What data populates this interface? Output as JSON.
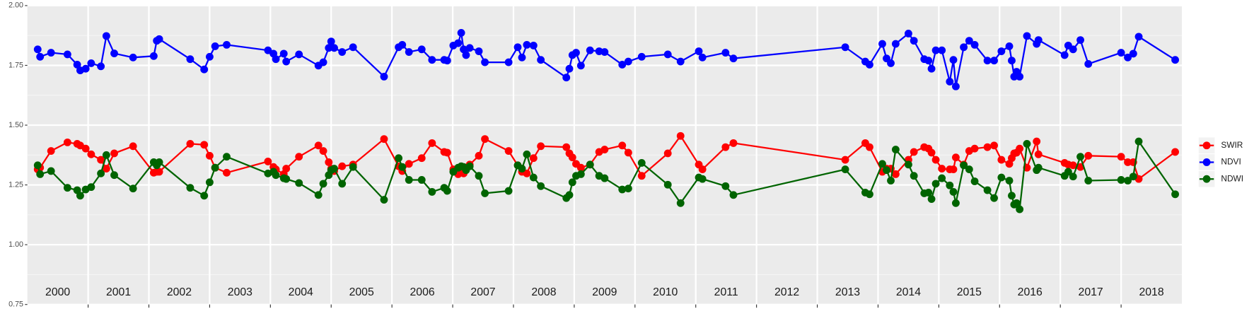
{
  "chart_data": {
    "type": "line",
    "x": [
      2000.17,
      2000.21,
      2000.39,
      2000.66,
      2000.82,
      2000.87,
      2000.96,
      2001.05,
      2001.21,
      2001.3,
      2001.43,
      2001.74,
      2002.08,
      2002.13,
      2002.17,
      2002.68,
      2002.91,
      2003.0,
      2003.09,
      2003.28,
      2003.96,
      2004.05,
      2004.09,
      2004.22,
      2004.26,
      2004.47,
      2004.79,
      2004.87,
      2004.96,
      2005.0,
      2005.05,
      2005.18,
      2005.36,
      2005.87,
      2006.11,
      2006.17,
      2006.28,
      2006.49,
      2006.66,
      2006.86,
      2006.91,
      2007.01,
      2007.09,
      2007.14,
      2007.18,
      2007.22,
      2007.28,
      2007.43,
      2007.53,
      2007.92,
      2008.07,
      2008.14,
      2008.22,
      2008.33,
      2008.45,
      2008.87,
      2008.92,
      2008.97,
      2009.03,
      2009.11,
      2009.26,
      2009.41,
      2009.5,
      2009.79,
      2009.89,
      2010.11,
      2010.54,
      2010.75,
      2011.05,
      2011.11,
      2011.49,
      2011.62,
      2013.46,
      2013.79,
      2013.86,
      2014.07,
      2014.14,
      2014.21,
      2014.29,
      2014.5,
      2014.59,
      2014.76,
      2014.83,
      2014.88,
      2014.95,
      2015.05,
      2015.18,
      2015.24,
      2015.28,
      2015.41,
      2015.5,
      2015.59,
      2015.8,
      2015.91,
      2016.03,
      2016.16,
      2016.2,
      2016.24,
      2016.28,
      2016.33,
      2016.45,
      2016.61,
      2016.64,
      2017.07,
      2017.13,
      2017.21,
      2017.33,
      2017.46,
      2018.0,
      2018.11,
      2018.2,
      2018.29,
      2018.89
    ],
    "series": [
      {
        "name": "SWIR",
        "color": "#ff0000",
        "values": [
          1.315,
          1.322,
          1.392,
          1.428,
          1.422,
          1.415,
          1.402,
          1.378,
          1.355,
          1.318,
          1.382,
          1.412,
          1.301,
          1.305,
          1.305,
          1.422,
          1.418,
          1.372,
          1.322,
          1.301,
          1.348,
          1.325,
          1.315,
          1.295,
          1.318,
          1.368,
          1.415,
          1.392,
          1.345,
          1.318,
          1.308,
          1.328,
          1.335,
          1.442,
          1.328,
          1.308,
          1.338,
          1.362,
          1.425,
          1.388,
          1.385,
          1.315,
          1.295,
          1.305,
          1.298,
          1.322,
          1.335,
          1.372,
          1.442,
          1.392,
          1.332,
          1.305,
          1.298,
          1.362,
          1.412,
          1.408,
          1.382,
          1.365,
          1.338,
          1.322,
          1.335,
          1.388,
          1.398,
          1.415,
          1.385,
          1.288,
          1.382,
          1.455,
          1.335,
          1.315,
          1.408,
          1.425,
          1.355,
          1.425,
          1.408,
          1.305,
          1.318,
          1.318,
          1.295,
          1.355,
          1.388,
          1.408,
          1.402,
          1.385,
          1.355,
          1.318,
          1.315,
          1.315,
          1.365,
          1.335,
          1.392,
          1.402,
          1.408,
          1.415,
          1.355,
          1.338,
          1.362,
          1.382,
          1.385,
          1.402,
          1.322,
          1.432,
          1.378,
          1.342,
          1.335,
          1.332,
          1.325,
          1.372,
          1.368,
          1.345,
          1.345,
          1.275,
          1.388
        ]
      },
      {
        "name": "NDVI",
        "color": "#0000ff",
        "values": [
          1.817,
          1.786,
          1.803,
          1.796,
          1.753,
          1.729,
          1.736,
          1.759,
          1.746,
          1.873,
          1.8,
          1.783,
          1.789,
          1.853,
          1.86,
          1.776,
          1.733,
          1.786,
          1.83,
          1.836,
          1.813,
          1.799,
          1.776,
          1.799,
          1.766,
          1.796,
          1.749,
          1.763,
          1.823,
          1.85,
          1.823,
          1.806,
          1.826,
          1.703,
          1.826,
          1.836,
          1.806,
          1.817,
          1.773,
          1.773,
          1.77,
          1.833,
          1.843,
          1.886,
          1.817,
          1.793,
          1.823,
          1.809,
          1.763,
          1.763,
          1.826,
          1.783,
          1.836,
          1.833,
          1.773,
          1.699,
          1.736,
          1.793,
          1.803,
          1.749,
          1.813,
          1.809,
          1.806,
          1.753,
          1.766,
          1.786,
          1.796,
          1.766,
          1.809,
          1.783,
          1.803,
          1.779,
          1.826,
          1.766,
          1.753,
          1.84,
          1.779,
          1.759,
          1.84,
          1.883,
          1.853,
          1.776,
          1.77,
          1.736,
          1.813,
          1.813,
          1.682,
          1.773,
          1.662,
          1.826,
          1.853,
          1.836,
          1.77,
          1.77,
          1.809,
          1.83,
          1.77,
          1.703,
          1.723,
          1.703,
          1.873,
          1.84,
          1.856,
          1.793,
          1.833,
          1.817,
          1.856,
          1.756,
          1.803,
          1.783,
          1.799,
          1.87,
          1.773
        ]
      },
      {
        "name": "NDWI",
        "color": "#006400",
        "values": [
          1.332,
          1.295,
          1.308,
          1.238,
          1.228,
          1.205,
          1.231,
          1.241,
          1.298,
          1.375,
          1.291,
          1.235,
          1.345,
          1.332,
          1.345,
          1.238,
          1.205,
          1.261,
          1.322,
          1.368,
          1.298,
          1.305,
          1.291,
          1.278,
          1.275,
          1.258,
          1.208,
          1.255,
          1.291,
          1.312,
          1.318,
          1.255,
          1.325,
          1.188,
          1.362,
          1.325,
          1.271,
          1.271,
          1.221,
          1.238,
          1.225,
          1.305,
          1.322,
          1.328,
          1.325,
          1.312,
          1.328,
          1.288,
          1.215,
          1.225,
          1.332,
          1.318,
          1.378,
          1.281,
          1.245,
          1.195,
          1.208,
          1.261,
          1.288,
          1.295,
          1.335,
          1.288,
          1.278,
          1.231,
          1.235,
          1.342,
          1.251,
          1.174,
          1.281,
          1.275,
          1.245,
          1.208,
          1.315,
          1.218,
          1.211,
          1.338,
          1.312,
          1.268,
          1.398,
          1.335,
          1.288,
          1.215,
          1.218,
          1.191,
          1.255,
          1.278,
          1.248,
          1.221,
          1.174,
          1.332,
          1.315,
          1.265,
          1.228,
          1.195,
          1.281,
          1.268,
          1.205,
          1.168,
          1.174,
          1.148,
          1.422,
          1.312,
          1.322,
          1.288,
          1.305,
          1.285,
          1.368,
          1.268,
          1.271,
          1.268,
          1.285,
          1.432,
          1.211
        ]
      }
    ],
    "year_labels": [
      "2000",
      "2001",
      "2002",
      "2003",
      "2004",
      "2005",
      "2006",
      "2007",
      "2008",
      "2009",
      "2010",
      "2011",
      "2012",
      "2013",
      "2014",
      "2015",
      "2016",
      "2017",
      "2018"
    ],
    "xlim": [
      2000,
      2019
    ],
    "xticks": [
      2001,
      2002,
      2003,
      2004,
      2005,
      2006,
      2007,
      2008,
      2009,
      2010,
      2011,
      2012,
      2013,
      2014,
      2015,
      2016,
      2017,
      2018
    ],
    "ylim": [
      0.75,
      2.0
    ],
    "yticks": [
      {
        "value": 0.75,
        "label": "0.75"
      },
      {
        "value": 1.0,
        "label": "1.00"
      },
      {
        "value": 1.25,
        "label": "1.25"
      },
      {
        "value": 1.5,
        "label": "1.50"
      },
      {
        "value": 1.75,
        "label": "1.75"
      },
      {
        "value": 2.0,
        "label": "2.00"
      }
    ],
    "grid": true
  }
}
